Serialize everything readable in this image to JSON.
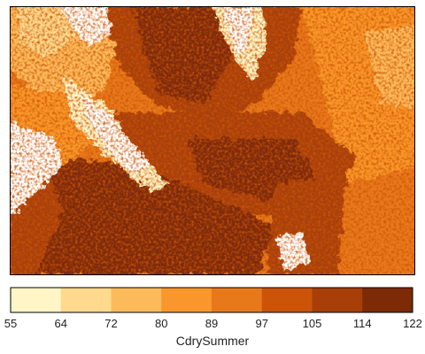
{
  "map": {
    "variable": "CdrySummer",
    "background_color": "#ffffff",
    "frame_color": "#000000"
  },
  "legend": {
    "title": "CdrySummer",
    "breaks": [
      55,
      64,
      72,
      80,
      89,
      97,
      105,
      114,
      122
    ],
    "colors": [
      "#fff5c6",
      "#fed98e",
      "#fdba5b",
      "#f9962c",
      "#e8791a",
      "#cc5408",
      "#a83f08",
      "#7d2a07"
    ],
    "orientation": "horizontal",
    "position": "bottom"
  }
}
